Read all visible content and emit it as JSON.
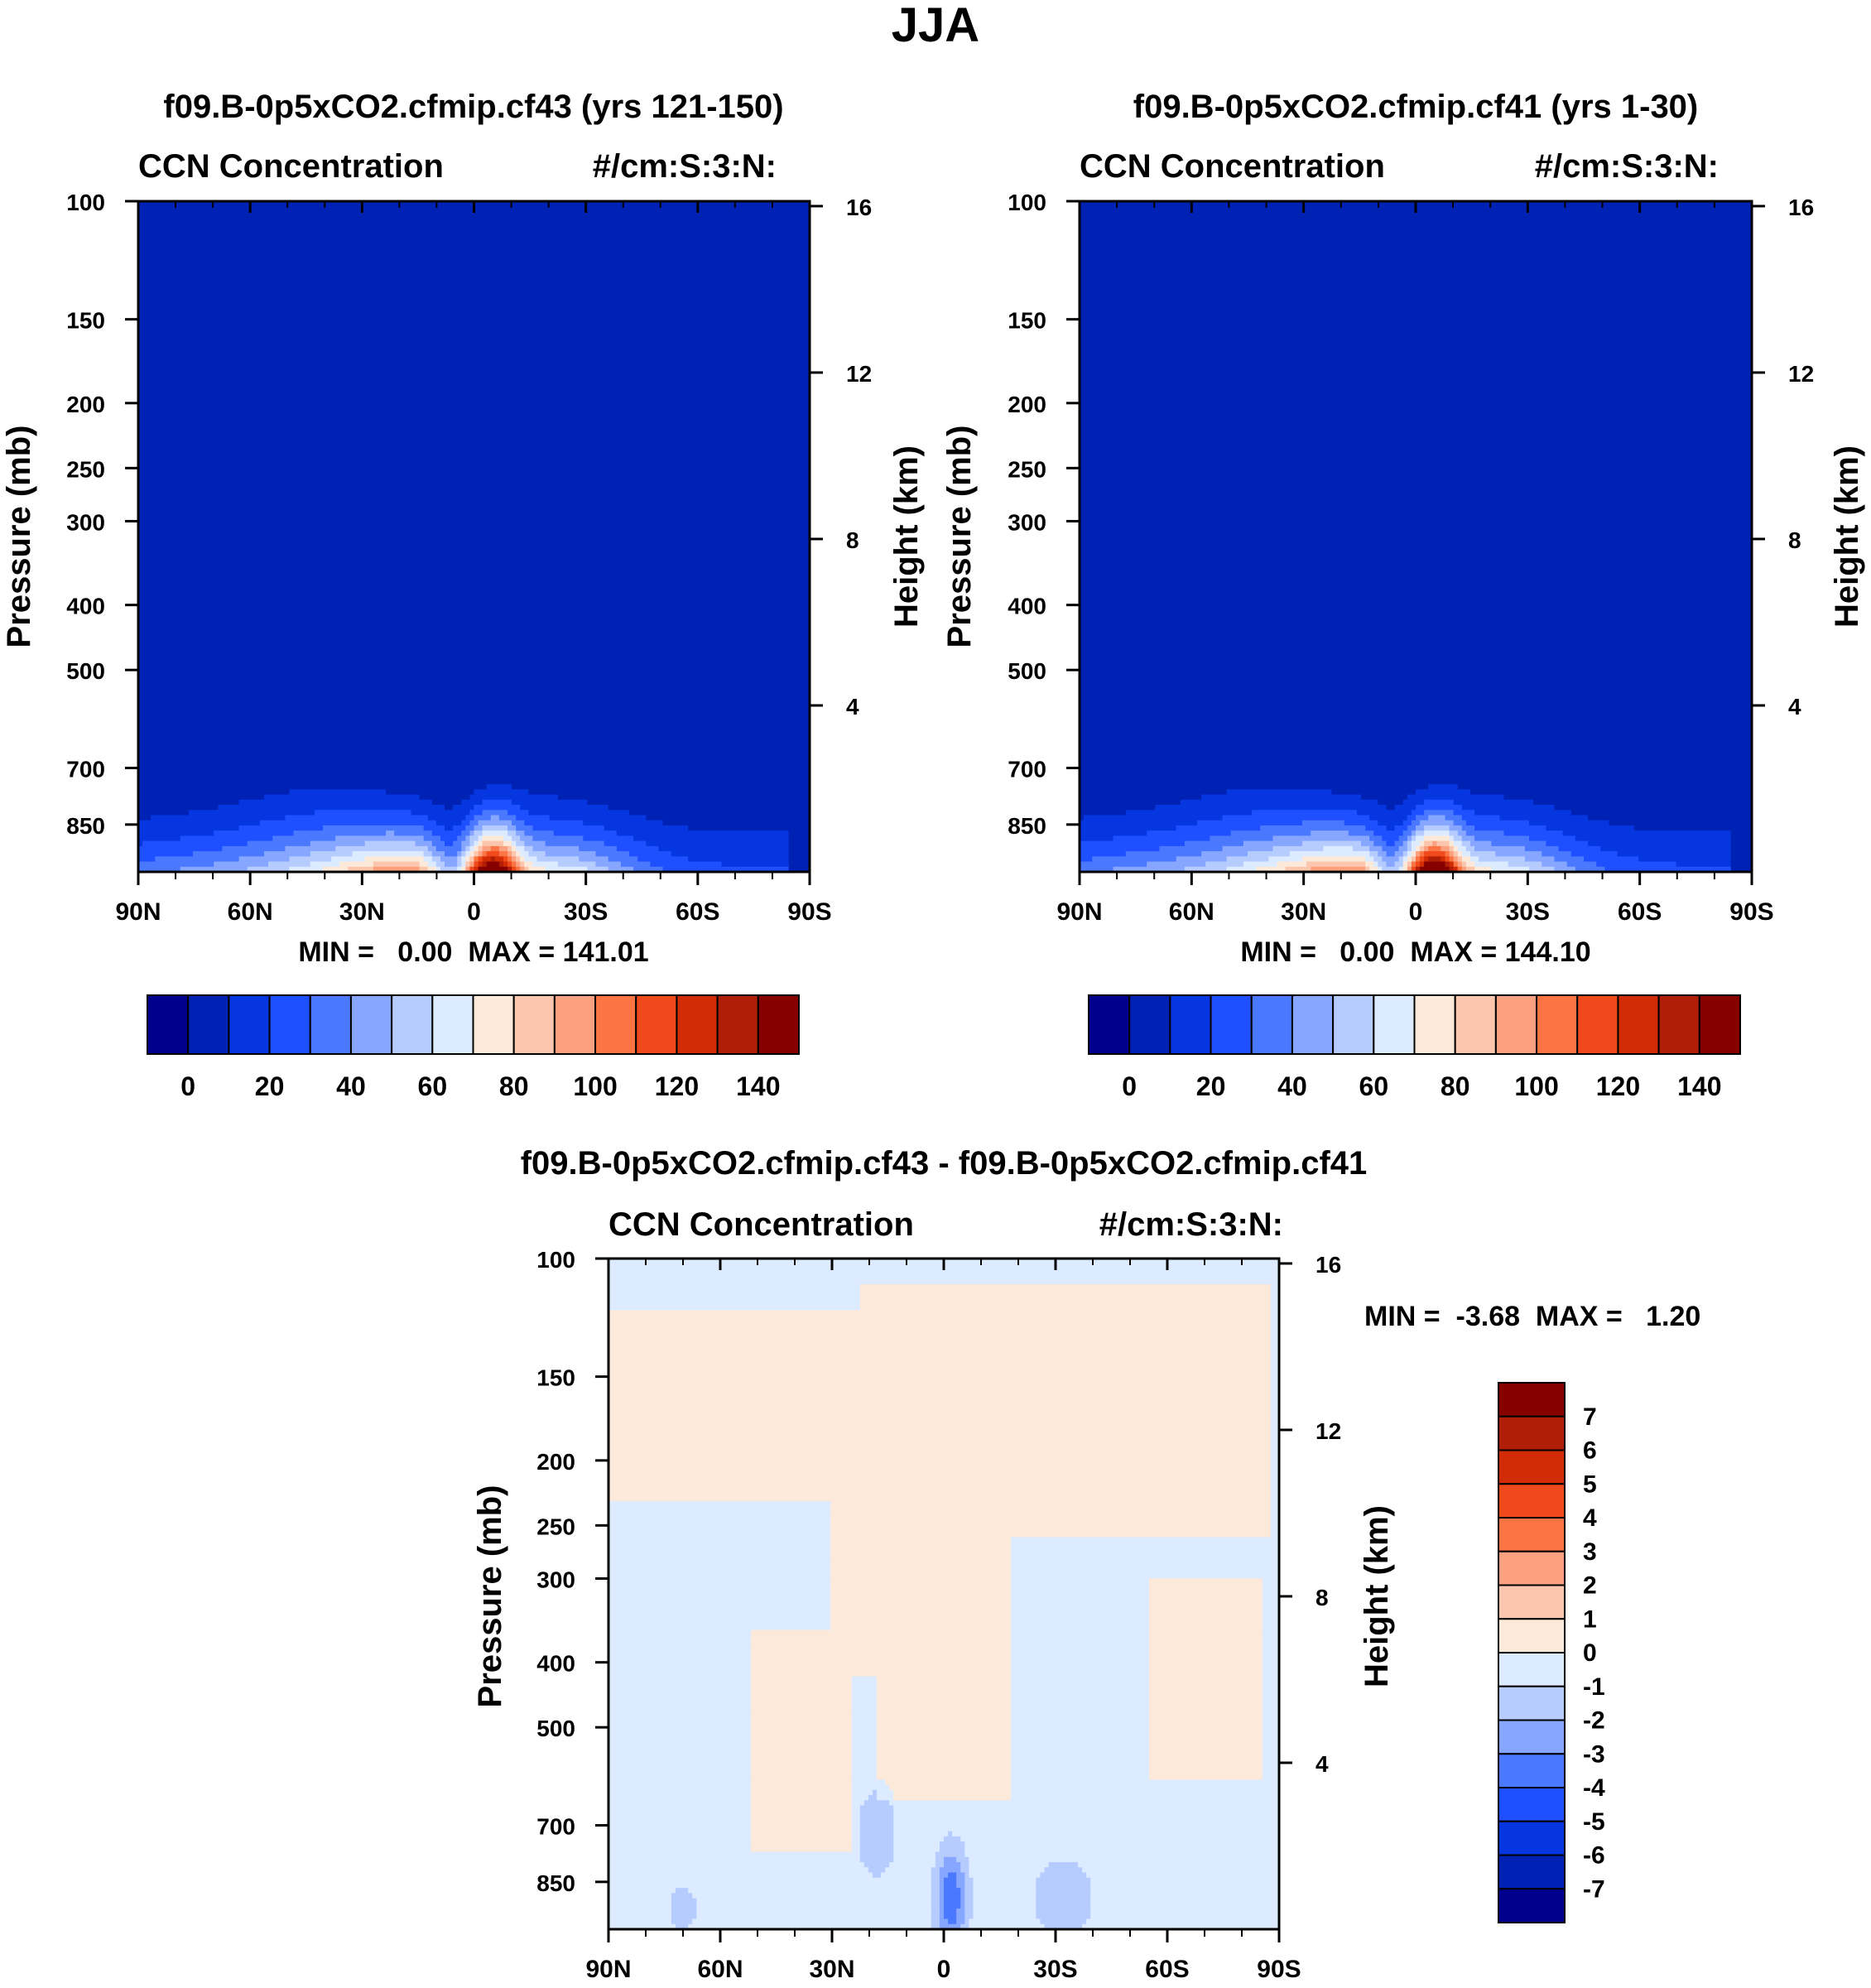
{
  "figure_title": "JJA",
  "colors": {
    "ccn_palette": [
      "#00008d",
      "#0022b4",
      "#0636e0",
      "#1e50ff",
      "#4a78ff",
      "#86a6ff",
      "#b6ccff",
      "#dcebff",
      "#fde9d9",
      "#fcc6ae",
      "#fca17f",
      "#fb7544",
      "#f04a1c",
      "#d12c05",
      "#b11e08",
      "#860000"
    ],
    "diff_palette": [
      "#00008d",
      "#0022b4",
      "#0636e0",
      "#1e50ff",
      "#4a78ff",
      "#86a6ff",
      "#b6ccff",
      "#dcebff",
      "#fde9d9",
      "#fcc6ae",
      "#fca17f",
      "#fb7544",
      "#f04a1c",
      "#d12c05",
      "#b11e08",
      "#860000"
    ]
  },
  "chart_data": [
    {
      "type": "heatmap",
      "id": "panel1",
      "title": "f09.B-0p5xCO2.cfmip.cf43 (yrs 121-150)",
      "left_string": "CCN Concentration",
      "right_string": "#/cm:S:3:N:",
      "ylabel": "Pressure (mb)",
      "ylabel_right": "Height (km)",
      "x_ticks": [
        "90N",
        "60N",
        "30N",
        "0",
        "30S",
        "60S",
        "90S"
      ],
      "xlim": [
        90,
        -90
      ],
      "y_ticks": [
        "100",
        "150",
        "200",
        "250",
        "300",
        "400",
        "500",
        "700",
        "850"
      ],
      "y_tick_values": [
        100,
        150,
        200,
        250,
        300,
        400,
        500,
        700,
        850
      ],
      "ylim_mb": [
        100,
        1000
      ],
      "y2_ticks": [
        "16",
        "12",
        "8",
        "4"
      ],
      "y2_tick_values": [
        16,
        12,
        8,
        4
      ],
      "stats": "MIN =   0.00  MAX = 141.01",
      "min": 0.0,
      "max": 141.01,
      "colorbar_labels": [
        "0",
        "20",
        "40",
        "60",
        "80",
        "100",
        "120",
        "140"
      ],
      "colorbar_levels": [
        0,
        10,
        20,
        30,
        40,
        50,
        60,
        70,
        80,
        90,
        100,
        110,
        120,
        130,
        140
      ],
      "description": "Shallow CCN plume below ~500 mb, peaks near surface at 5S (~141) and 20-40N"
    },
    {
      "type": "heatmap",
      "id": "panel2",
      "title": "f09.B-0p5xCO2.cfmip.cf41 (yrs 1-30)",
      "left_string": "CCN Concentration",
      "right_string": "#/cm:S:3:N:",
      "ylabel": "Pressure (mb)",
      "ylabel_right": "Height (km)",
      "x_ticks": [
        "90N",
        "60N",
        "30N",
        "0",
        "30S",
        "60S",
        "90S"
      ],
      "xlim": [
        90,
        -90
      ],
      "y_ticks": [
        "100",
        "150",
        "200",
        "250",
        "300",
        "400",
        "500",
        "700",
        "850"
      ],
      "y_tick_values": [
        100,
        150,
        200,
        250,
        300,
        400,
        500,
        700,
        850
      ],
      "ylim_mb": [
        100,
        1000
      ],
      "y2_ticks": [
        "16",
        "12",
        "8",
        "4"
      ],
      "y2_tick_values": [
        16,
        12,
        8,
        4
      ],
      "stats": "MIN =   0.00  MAX = 144.10",
      "min": 0.0,
      "max": 144.1,
      "colorbar_labels": [
        "0",
        "20",
        "40",
        "60",
        "80",
        "100",
        "120",
        "140"
      ],
      "colorbar_levels": [
        0,
        10,
        20,
        30,
        40,
        50,
        60,
        70,
        80,
        90,
        100,
        110,
        120,
        130,
        140
      ]
    },
    {
      "type": "heatmap",
      "id": "panel3",
      "title": "f09.B-0p5xCO2.cfmip.cf43 - f09.B-0p5xCO2.cfmip.cf41",
      "left_string": "CCN Concentration",
      "right_string": "#/cm:S:3:N:",
      "ylabel": "Pressure (mb)",
      "ylabel_right": "Height (km)",
      "x_ticks": [
        "90N",
        "60N",
        "30N",
        "0",
        "30S",
        "60S",
        "90S"
      ],
      "xlim": [
        90,
        -90
      ],
      "y_ticks": [
        "100",
        "150",
        "200",
        "250",
        "300",
        "400",
        "500",
        "700",
        "850"
      ],
      "y_tick_values": [
        100,
        150,
        200,
        250,
        300,
        400,
        500,
        700,
        850
      ],
      "ylim_mb": [
        100,
        1000
      ],
      "y2_ticks": [
        "16",
        "12",
        "8",
        "4"
      ],
      "y2_tick_values": [
        16,
        12,
        8,
        4
      ],
      "stats": "MIN =  -3.68  MAX =   1.20",
      "min": -3.68,
      "max": 1.2,
      "colorbar_labels": [
        "7",
        "6",
        "5",
        "4",
        "3",
        "2",
        "1",
        "0",
        "-1",
        "-2",
        "-3",
        "-4",
        "-5",
        "-6",
        "-7"
      ],
      "colorbar_levels": [
        -7,
        -6,
        -5,
        -4,
        -3,
        -2,
        -1,
        0,
        1,
        2,
        3,
        4,
        5,
        6,
        7
      ]
    }
  ]
}
